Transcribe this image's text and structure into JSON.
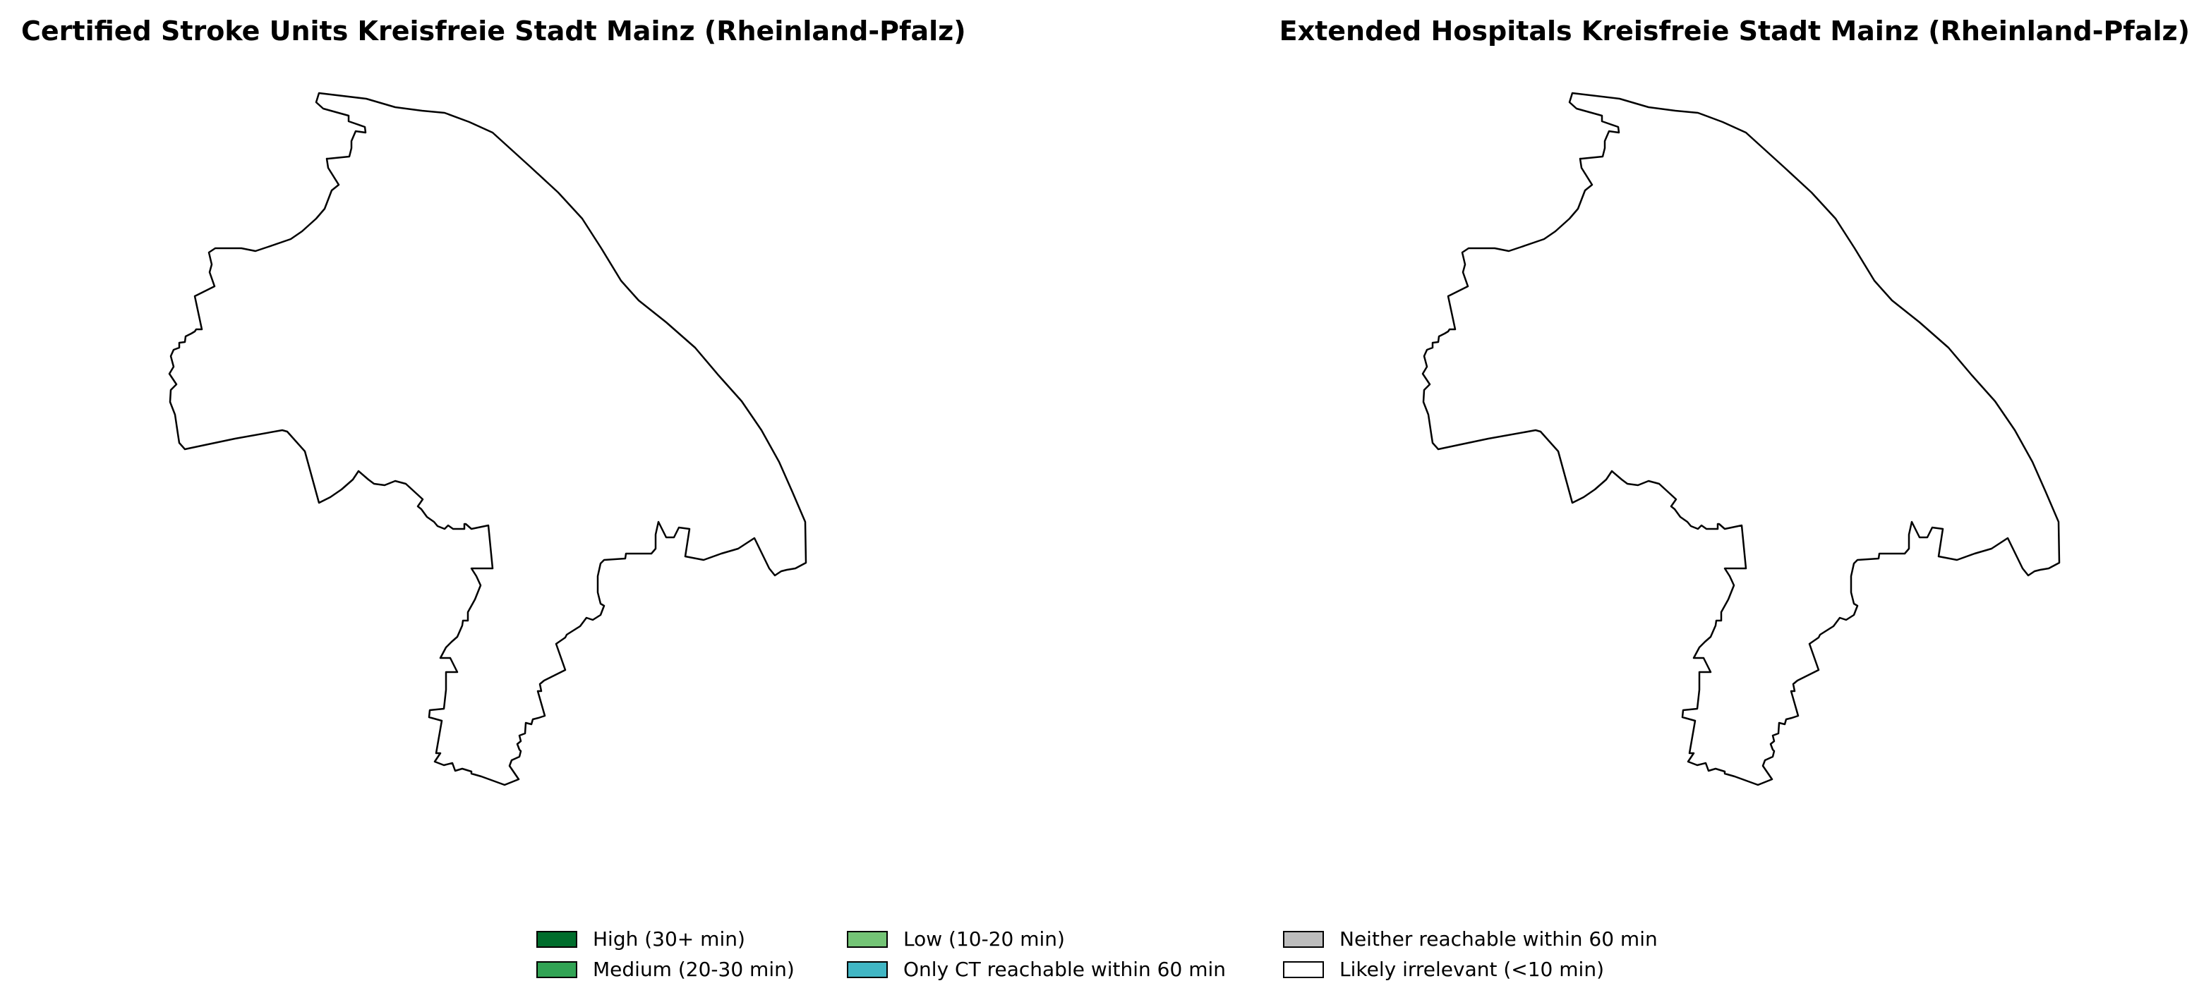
{
  "maps": [
    {
      "title": "Certified Stroke Units Kreisfreie Stadt Mainz (Rheinland-Pfalz)",
      "region_fill": "#ffffff",
      "category": "Likely irrelevant (<10 min)"
    },
    {
      "title": "Extended Hospitals Kreisfreie Stadt Mainz (Rheinland-Pfalz)",
      "region_fill": "#ffffff",
      "category": "Likely irrelevant (<10 min)"
    }
  ],
  "legend": {
    "items": [
      {
        "label": "High (30+ min)",
        "color": "#006d2c"
      },
      {
        "label": "Medium (20-30 min)",
        "color": "#31a354"
      },
      {
        "label": "Low (10-20 min)",
        "color": "#74c476"
      },
      {
        "label": "Only CT reachable within 60 min",
        "color": "#41b6c4"
      },
      {
        "label": "Neither reachable within 60 min",
        "color": "#bdbdbd"
      },
      {
        "label": "Likely irrelevant (<10 min)",
        "color": "#ffffff"
      }
    ]
  }
}
